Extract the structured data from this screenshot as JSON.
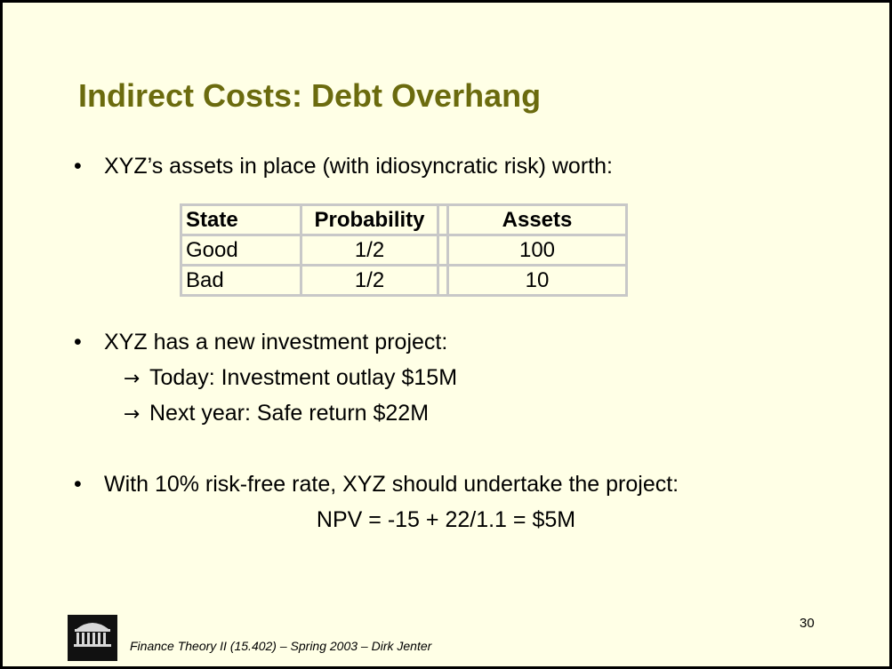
{
  "title": "Indirect Costs: Debt Overhang",
  "bullets": {
    "b1": "XYZ’s assets in place (with idiosyncratic risk) worth:",
    "b2": "XYZ has a new investment project:",
    "b2_sub": [
      "Today: Investment outlay $15M",
      "Next year: Safe return $22M"
    ],
    "b3": "With 10% risk-free rate, XYZ should undertake the project:",
    "b3_formula": "NPV = -15 + 22/1.1 = $5M",
    "bullet_char": "•",
    "arrow_char": "→"
  },
  "table": {
    "headers": [
      "State",
      "Probability",
      "Assets"
    ],
    "rows": [
      [
        "Good",
        "1/2",
        "100"
      ],
      [
        "Bad",
        "1/2",
        "10"
      ]
    ]
  },
  "footer": {
    "text": "Finance Theory II (15.402) – Spring 2003 – Dirk Jenter",
    "page_number": "30",
    "logo_text": "MITSloan"
  }
}
